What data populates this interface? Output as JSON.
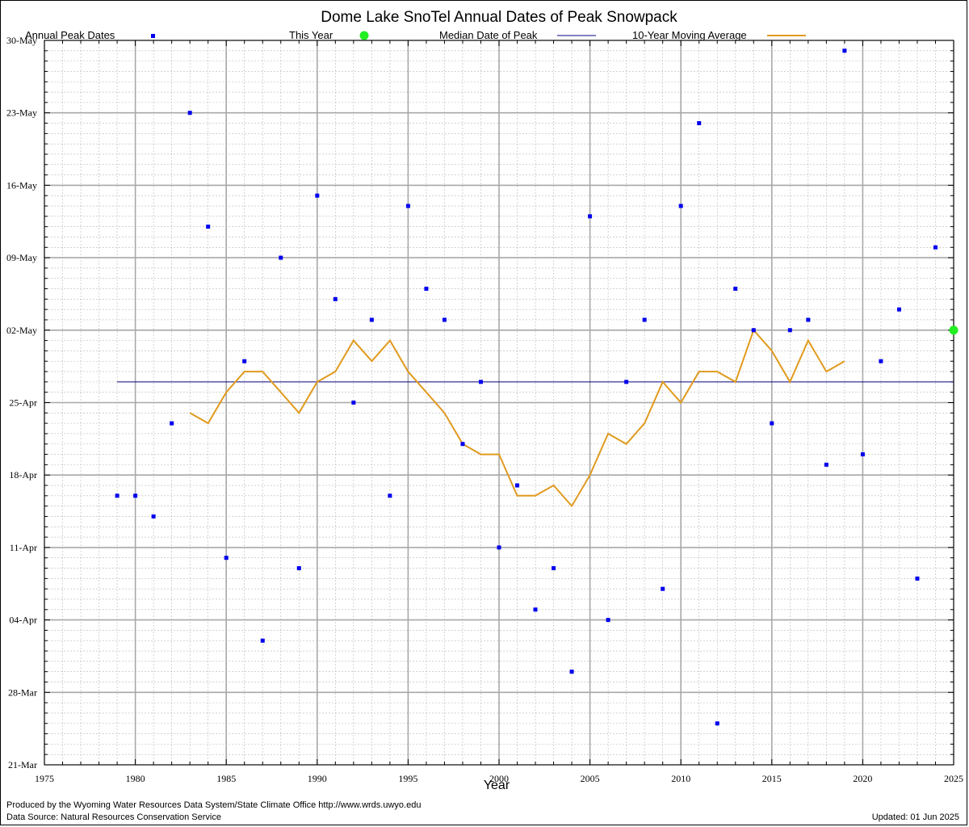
{
  "chart_data": {
    "type": "scatter",
    "title": "Dome Lake SnoTel Annual Dates of Peak Snowpack",
    "xlabel": "Year",
    "ylabel": "",
    "xlim": [
      1975,
      2025
    ],
    "ylim": [
      "21-Mar",
      "30-May"
    ],
    "x_ticks": [
      1975,
      1980,
      1985,
      1990,
      1995,
      2000,
      2005,
      2010,
      2015,
      2020,
      2025
    ],
    "y_ticks": [
      "21-Mar",
      "28-Mar",
      "04-Apr",
      "11-Apr",
      "18-Apr",
      "25-Apr",
      "02-May",
      "09-May",
      "16-May",
      "23-May",
      "30-May"
    ],
    "grid": true,
    "legend": "top",
    "series": [
      {
        "name": "Annual Peak Dates",
        "color": "#0000ee",
        "points": [
          {
            "x": 1979,
            "y": "16-Apr"
          },
          {
            "x": 1980,
            "y": "16-Apr"
          },
          {
            "x": 1981,
            "y": "14-Apr"
          },
          {
            "x": 1982,
            "y": "23-Apr"
          },
          {
            "x": 1983,
            "y": "23-May"
          },
          {
            "x": 1984,
            "y": "12-May"
          },
          {
            "x": 1985,
            "y": "10-Apr"
          },
          {
            "x": 1986,
            "y": "29-Apr"
          },
          {
            "x": 1987,
            "y": "02-Apr"
          },
          {
            "x": 1988,
            "y": "09-May"
          },
          {
            "x": 1989,
            "y": "09-Apr"
          },
          {
            "x": 1990,
            "y": "15-May"
          },
          {
            "x": 1991,
            "y": "05-May"
          },
          {
            "x": 1992,
            "y": "25-Apr"
          },
          {
            "x": 1993,
            "y": "03-May"
          },
          {
            "x": 1994,
            "y": "16-Apr"
          },
          {
            "x": 1995,
            "y": "14-May"
          },
          {
            "x": 1996,
            "y": "06-May"
          },
          {
            "x": 1997,
            "y": "03-May"
          },
          {
            "x": 1998,
            "y": "21-Apr"
          },
          {
            "x": 1999,
            "y": "27-Apr"
          },
          {
            "x": 2000,
            "y": "11-Apr"
          },
          {
            "x": 2001,
            "y": "17-Apr"
          },
          {
            "x": 2002,
            "y": "05-Apr"
          },
          {
            "x": 2003,
            "y": "09-Apr"
          },
          {
            "x": 2004,
            "y": "30-Mar"
          },
          {
            "x": 2005,
            "y": "13-May"
          },
          {
            "x": 2006,
            "y": "04-Apr"
          },
          {
            "x": 2007,
            "y": "27-Apr"
          },
          {
            "x": 2008,
            "y": "03-May"
          },
          {
            "x": 2009,
            "y": "07-Apr"
          },
          {
            "x": 2010,
            "y": "14-May"
          },
          {
            "x": 2011,
            "y": "22-May"
          },
          {
            "x": 2012,
            "y": "25-Mar"
          },
          {
            "x": 2013,
            "y": "06-May"
          },
          {
            "x": 2014,
            "y": "02-May"
          },
          {
            "x": 2015,
            "y": "23-Apr"
          },
          {
            "x": 2016,
            "y": "02-May"
          },
          {
            "x": 2017,
            "y": "03-May"
          },
          {
            "x": 2018,
            "y": "19-Apr"
          },
          {
            "x": 2019,
            "y": "29-May"
          },
          {
            "x": 2020,
            "y": "20-Apr"
          },
          {
            "x": 2021,
            "y": "29-Apr"
          },
          {
            "x": 2022,
            "y": "04-May"
          },
          {
            "x": 2023,
            "y": "08-Apr"
          },
          {
            "x": 2024,
            "y": "10-May"
          }
        ]
      },
      {
        "name": "This Year",
        "color": "#22ee22",
        "points": [
          {
            "x": 2025,
            "y": "02-May"
          }
        ]
      },
      {
        "name": "Median Date of Peak",
        "color": "#000080",
        "x_range": [
          1979,
          2025
        ],
        "y": "27-Apr"
      },
      {
        "name": "10-Year Moving Average",
        "color": "#e09a1e",
        "points": [
          {
            "x": 1983,
            "y": "24-Apr"
          },
          {
            "x": 1984,
            "y": "23-Apr"
          },
          {
            "x": 1985,
            "y": "26-Apr"
          },
          {
            "x": 1986,
            "y": "28-Apr"
          },
          {
            "x": 1987,
            "y": "28-Apr"
          },
          {
            "x": 1988,
            "y": "26-Apr"
          },
          {
            "x": 1989,
            "y": "24-Apr"
          },
          {
            "x": 1990,
            "y": "27-Apr"
          },
          {
            "x": 1991,
            "y": "28-Apr"
          },
          {
            "x": 1992,
            "y": "01-May"
          },
          {
            "x": 1993,
            "y": "29-Apr"
          },
          {
            "x": 1994,
            "y": "01-May"
          },
          {
            "x": 1995,
            "y": "28-Apr"
          },
          {
            "x": 1996,
            "y": "26-Apr"
          },
          {
            "x": 1997,
            "y": "24-Apr"
          },
          {
            "x": 1998,
            "y": "21-Apr"
          },
          {
            "x": 1999,
            "y": "20-Apr"
          },
          {
            "x": 2000,
            "y": "20-Apr"
          },
          {
            "x": 2001,
            "y": "16-Apr"
          },
          {
            "x": 2002,
            "y": "16-Apr"
          },
          {
            "x": 2003,
            "y": "17-Apr"
          },
          {
            "x": 2004,
            "y": "15-Apr"
          },
          {
            "x": 2005,
            "y": "18-Apr"
          },
          {
            "x": 2006,
            "y": "22-Apr"
          },
          {
            "x": 2007,
            "y": "21-Apr"
          },
          {
            "x": 2008,
            "y": "23-Apr"
          },
          {
            "x": 2009,
            "y": "27-Apr"
          },
          {
            "x": 2010,
            "y": "25-Apr"
          },
          {
            "x": 2011,
            "y": "28-Apr"
          },
          {
            "x": 2012,
            "y": "28-Apr"
          },
          {
            "x": 2013,
            "y": "27-Apr"
          },
          {
            "x": 2014,
            "y": "02-May"
          },
          {
            "x": 2015,
            "y": "30-Apr"
          },
          {
            "x": 2016,
            "y": "27-Apr"
          },
          {
            "x": 2017,
            "y": "01-May"
          },
          {
            "x": 2018,
            "y": "28-Apr"
          },
          {
            "x": 2019,
            "y": "29-Apr"
          }
        ]
      }
    ]
  },
  "footer": {
    "produced_by": "Produced by the Wyoming Water Resources Data System/State Climate Office http://www.wrds.uwyo.edu",
    "data_source": "Data Source: Natural Resources Conservation Service",
    "updated": "Updated: 01 Jun 2025"
  }
}
